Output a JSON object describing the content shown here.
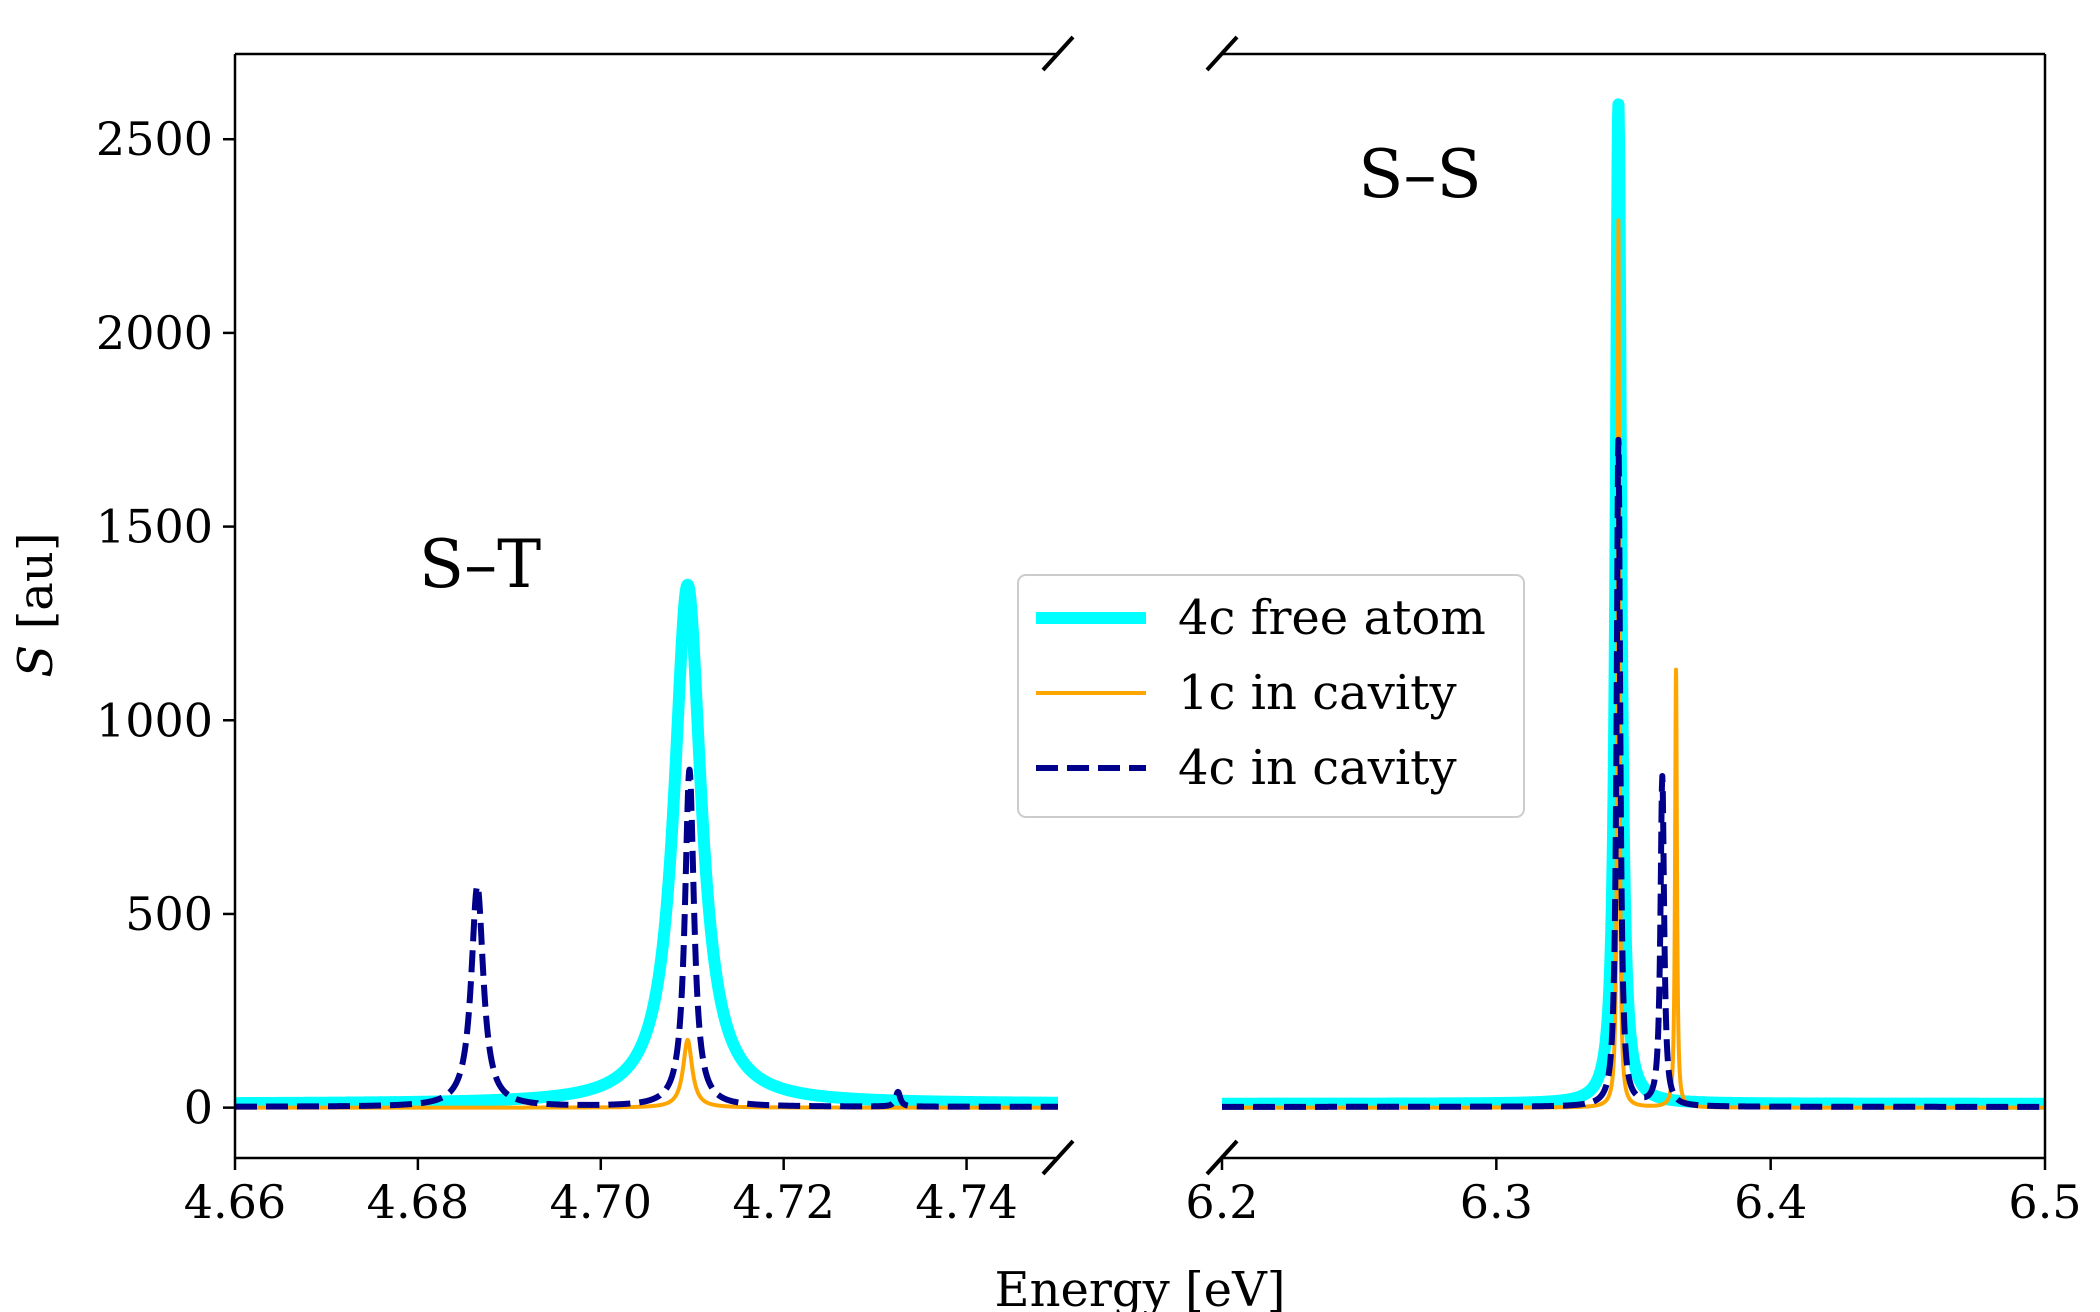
{
  "chart_data": {
    "type": "line",
    "xlabel": "Energy [eV]",
    "ylabel_italic": "S",
    "ylabel_rest": " [au]",
    "ylim": [
      -130,
      2720
    ],
    "yticks": [
      0,
      500,
      1000,
      1500,
      2000,
      2500
    ],
    "panels": [
      {
        "name": "left",
        "xlim": [
          4.66,
          4.75
        ],
        "xticks": [
          4.66,
          4.68,
          4.7,
          4.72,
          4.74
        ],
        "xtick_labels": [
          "4.66",
          "4.68",
          "4.70",
          "4.72",
          "4.74"
        ],
        "annotation": "S–T"
      },
      {
        "name": "right",
        "xlim": [
          6.2,
          6.5
        ],
        "xticks": [
          6.2,
          6.3,
          6.4,
          6.5
        ],
        "xtick_labels": [
          "6.2",
          "6.3",
          "6.4",
          "6.5"
        ],
        "annotation": "S–S"
      }
    ],
    "series": [
      {
        "name": "4c free atom",
        "color": "#00ffff",
        "style": "solid",
        "width": 12,
        "baseline": 10,
        "peaks": [
          {
            "x": 4.7095,
            "height": 1340,
            "hwhm": 0.0018
          },
          {
            "x": 6.3445,
            "height": 2580,
            "hwhm": 0.0012
          }
        ]
      },
      {
        "name": "1c in cavity",
        "color": "#ffa500",
        "style": "solid",
        "width": 4,
        "baseline": 0,
        "peaks": [
          {
            "x": 4.7095,
            "height": 175,
            "hwhm": 0.0006
          },
          {
            "x": 6.3445,
            "height": 2290,
            "hwhm": 0.0004
          },
          {
            "x": 6.3655,
            "height": 1130,
            "hwhm": 0.0004
          }
        ]
      },
      {
        "name": "4c in cavity",
        "color": "#00008b",
        "style": "dashed",
        "width": 6,
        "baseline": 2,
        "peaks": [
          {
            "x": 4.6865,
            "height": 570,
            "hwhm": 0.0008
          },
          {
            "x": 4.7097,
            "height": 870,
            "hwhm": 0.0006
          },
          {
            "x": 4.7325,
            "height": 38,
            "hwhm": 0.0003
          },
          {
            "x": 6.3445,
            "height": 1720,
            "hwhm": 0.0008
          },
          {
            "x": 6.3605,
            "height": 850,
            "hwhm": 0.0008
          }
        ]
      }
    ]
  }
}
